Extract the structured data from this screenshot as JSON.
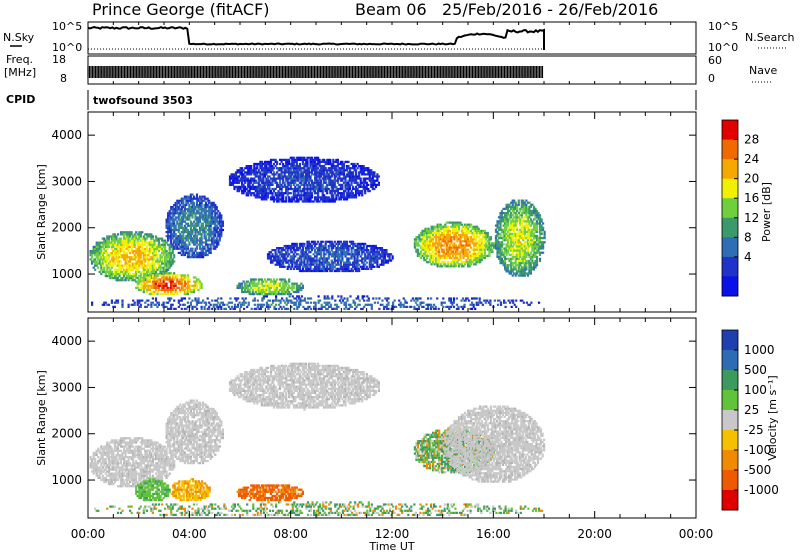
{
  "header": {
    "station": "Prince George (fitACF)",
    "beam": "Beam 06",
    "date_range": "25/Feb/2016 - 26/Feb/2016"
  },
  "panels": {
    "nsky_label": "N.Sky",
    "nsky_ticks": [
      "10^5",
      "10^0"
    ],
    "nsearch_label": "N.Search",
    "nsearch_ticks": [
      "10^5",
      "10^0"
    ],
    "freq_label_1": "Freq.",
    "freq_label_2": "[MHz]",
    "freq_ticks": [
      "18",
      "8"
    ],
    "nave_label": "Nave",
    "nave_ticks": [
      "60",
      "0"
    ],
    "cpid_label": "CPID",
    "cpid_value": "twofsound 3503"
  },
  "chart_data": [
    {
      "type": "heatmap",
      "name": "power",
      "xlabel": "",
      "ylabel": "Slant Range [km]",
      "xlim": [
        "00:00",
        "24:00"
      ],
      "ylim": [
        180,
        4500
      ],
      "y_ticks": [
        "1000",
        "2000",
        "3000",
        "4000"
      ],
      "colorbar_label": "Power [dB]",
      "colorbar_ticks": [
        "28",
        "24",
        "20",
        "16",
        "12",
        "8",
        "4"
      ],
      "colorbar_colors": [
        "#e00000",
        "#f06a00",
        "#f5a800",
        "#f0f000",
        "#6fcf3c",
        "#3c9a6a",
        "#2f6db5",
        "#1f33c8",
        "#0a10e8"
      ],
      "echo_regions": [
        {
          "t0": 0.0,
          "t1": 3.4,
          "r0": 800,
          "r1": 1900,
          "level": 0.7
        },
        {
          "t0": 1.8,
          "t1": 4.5,
          "r0": 500,
          "r1": 1000,
          "level": 0.9
        },
        {
          "t0": 3.0,
          "t1": 5.3,
          "r0": 1300,
          "r1": 2700,
          "level": 0.35
        },
        {
          "t0": 5.8,
          "t1": 8.5,
          "r0": 500,
          "r1": 900,
          "level": 0.6
        },
        {
          "t0": 5.5,
          "t1": 11.5,
          "r0": 2500,
          "r1": 3500,
          "level": 0.2
        },
        {
          "t0": 7.0,
          "t1": 12.0,
          "r0": 1000,
          "r1": 1700,
          "level": 0.25
        },
        {
          "t0": 12.8,
          "t1": 16.0,
          "r0": 1100,
          "r1": 2100,
          "level": 0.8
        },
        {
          "t0": 16.0,
          "t1": 18.0,
          "r0": 900,
          "r1": 2600,
          "level": 0.6
        },
        {
          "t0": 0.0,
          "t1": 18.0,
          "r0": 180,
          "r1": 500,
          "level": 0.3
        }
      ]
    },
    {
      "type": "heatmap",
      "name": "velocity",
      "xlabel": "Time UT",
      "ylabel": "Slant Range [km]",
      "xlim": [
        "00:00",
        "24:00"
      ],
      "ylim": [
        180,
        4500
      ],
      "x_ticks": [
        "00:00",
        "04:00",
        "08:00",
        "12:00",
        "16:00",
        "20:00",
        "00:00"
      ],
      "y_ticks": [
        "1000",
        "2000",
        "3000",
        "4000"
      ],
      "colorbar_label": "Velocity [m s⁻¹]",
      "colorbar_ticks": [
        "1000",
        "500",
        "100",
        "25",
        "-25",
        "-100",
        "-500",
        "-1000"
      ],
      "colorbar_colors": [
        "#1e3fb0",
        "#2d6bb5",
        "#3b9a5e",
        "#62c23a",
        "#c8c8c8",
        "#f5c000",
        "#f08a00",
        "#ee5a00",
        "#e00000"
      ],
      "echo_regions": [
        {
          "t0": 0.0,
          "t1": 3.4,
          "r0": 800,
          "r1": 1900,
          "class": "gray"
        },
        {
          "t0": 3.0,
          "t1": 5.3,
          "r0": 1300,
          "r1": 2700,
          "class": "gray"
        },
        {
          "t0": 1.8,
          "t1": 3.2,
          "r0": 500,
          "r1": 1000,
          "class": "green"
        },
        {
          "t0": 3.2,
          "t1": 4.8,
          "r0": 500,
          "r1": 1000,
          "class": "yellow"
        },
        {
          "t0": 5.8,
          "t1": 8.5,
          "r0": 500,
          "r1": 900,
          "class": "orange"
        },
        {
          "t0": 5.5,
          "t1": 11.5,
          "r0": 2500,
          "r1": 3500,
          "class": "gray"
        },
        {
          "t0": 12.8,
          "t1": 16.0,
          "r0": 1100,
          "r1": 2100,
          "class": "mixed"
        },
        {
          "t0": 14.0,
          "t1": 18.0,
          "r0": 900,
          "r1": 2600,
          "class": "gray"
        },
        {
          "t0": 0.0,
          "t1": 18.0,
          "r0": 180,
          "r1": 500,
          "class": "mixed"
        }
      ]
    }
  ]
}
